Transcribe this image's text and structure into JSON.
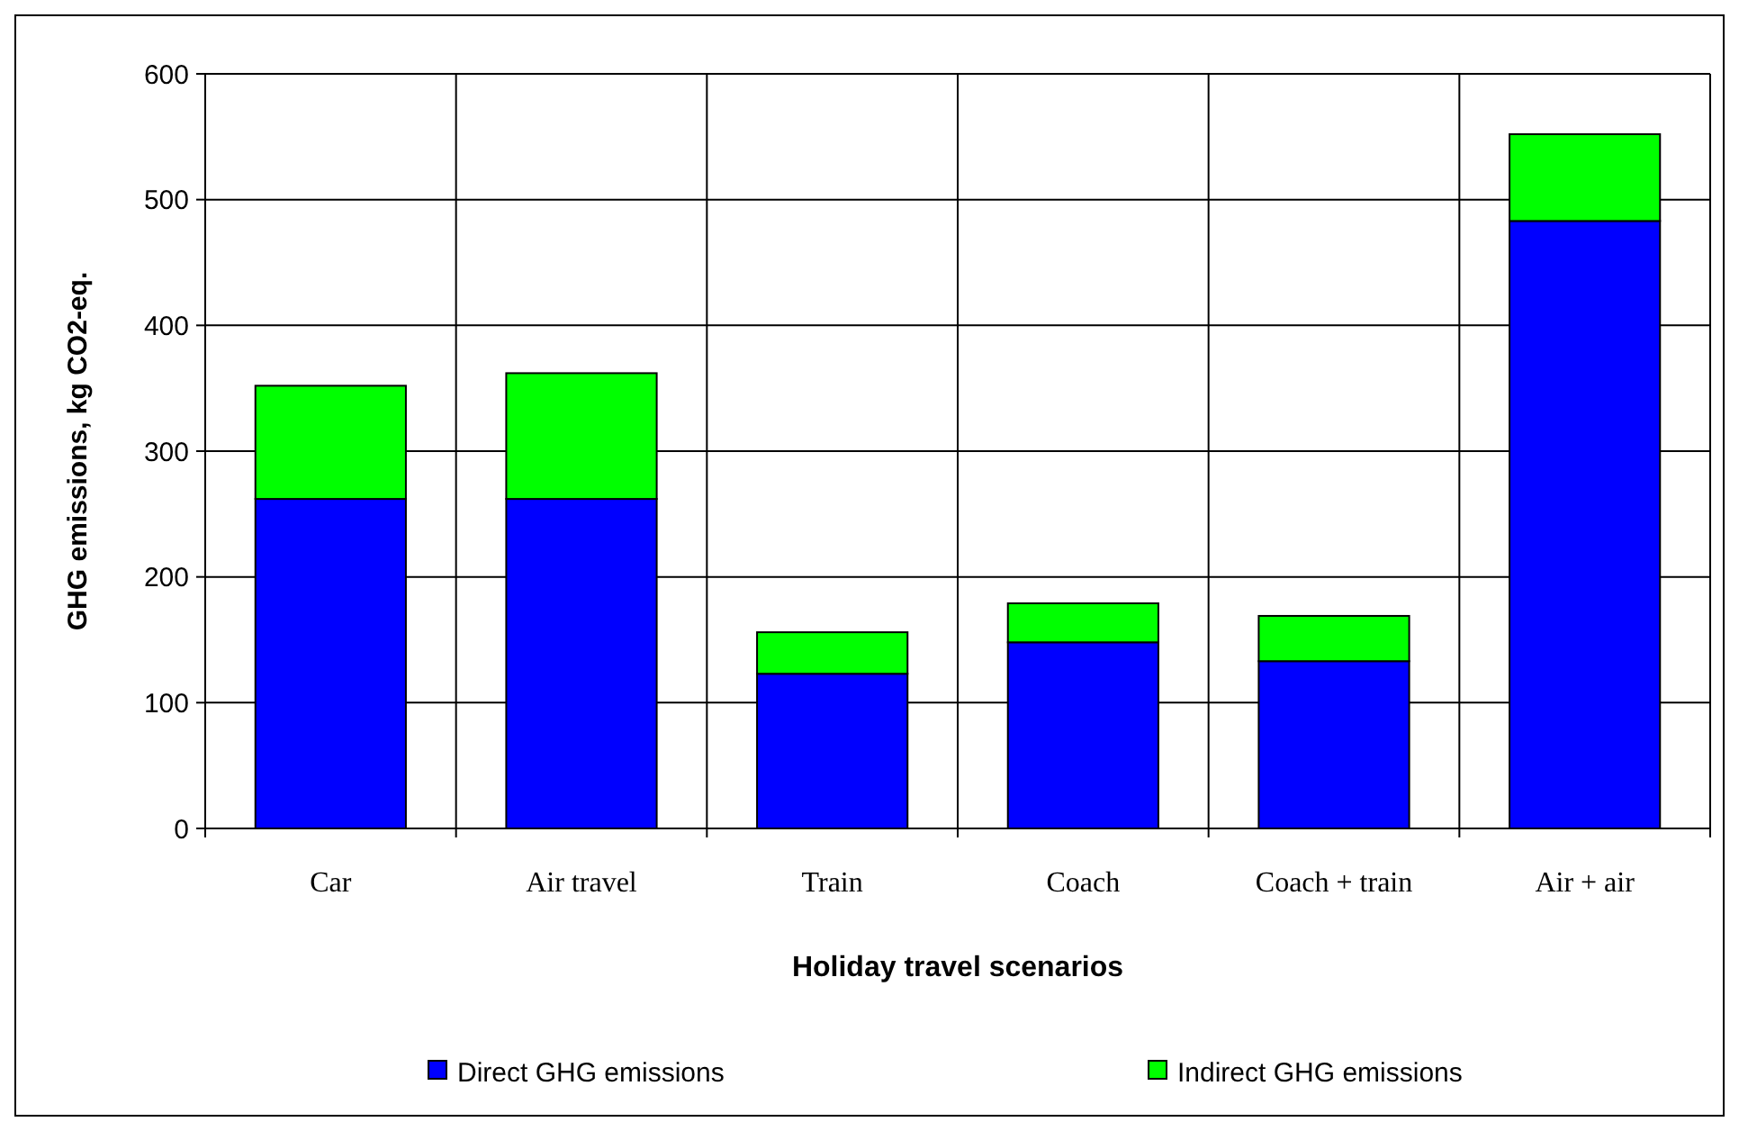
{
  "chart_data": {
    "type": "bar",
    "stacked": true,
    "xlabel": "Holiday travel scenarios",
    "ylabel": "GHG emissions, kg CO2-eq.",
    "categories": [
      "Car",
      "Air travel",
      "Train",
      "Coach",
      "Coach + train",
      "Air + air"
    ],
    "series": [
      {
        "name": "Direct GHG emissions",
        "color": "#0000ff",
        "values": [
          262,
          262,
          123,
          148,
          133,
          483
        ]
      },
      {
        "name": "Indirect GHG emissions",
        "color": "#00ff00",
        "values": [
          90,
          100,
          33,
          31,
          36,
          69
        ]
      }
    ],
    "ylim": [
      0,
      600
    ],
    "yticks": [
      0,
      100,
      200,
      300,
      400,
      500,
      600
    ],
    "grid": true,
    "legend": "bottom"
  }
}
